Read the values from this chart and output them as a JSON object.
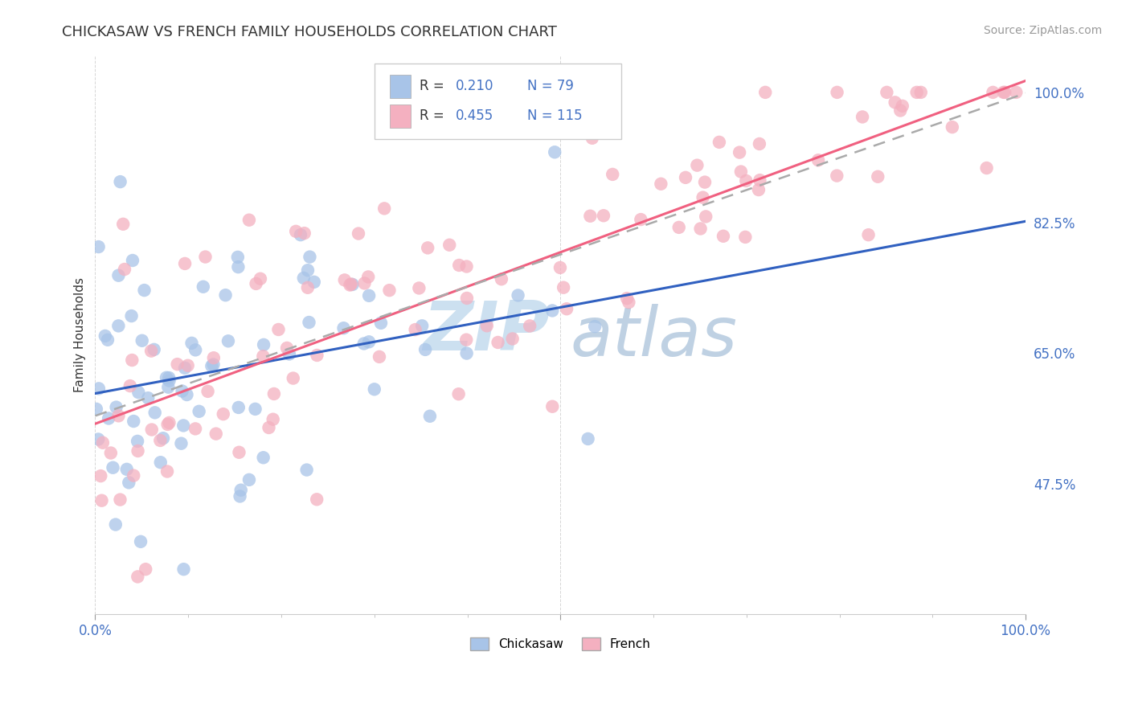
{
  "title": "CHICKASAW VS FRENCH FAMILY HOUSEHOLDS CORRELATION CHART",
  "source": "Source: ZipAtlas.com",
  "ylabel": "Family Households",
  "right_yticks": [
    "100.0%",
    "82.5%",
    "65.0%",
    "47.5%"
  ],
  "right_ytick_vals": [
    1.0,
    0.825,
    0.65,
    0.475
  ],
  "chickasaw_R": 0.21,
  "chickasaw_N": 79,
  "french_R": 0.455,
  "french_N": 115,
  "chickasaw_color": "#a8c4e8",
  "french_color": "#f4b0c0",
  "chickasaw_line_color": "#3060c0",
  "french_line_color": "#f06080",
  "dashed_line_color": "#aaaaaa",
  "background_color": "#ffffff",
  "xlim": [
    0.0,
    1.0
  ],
  "ylim": [
    0.3,
    1.05
  ]
}
